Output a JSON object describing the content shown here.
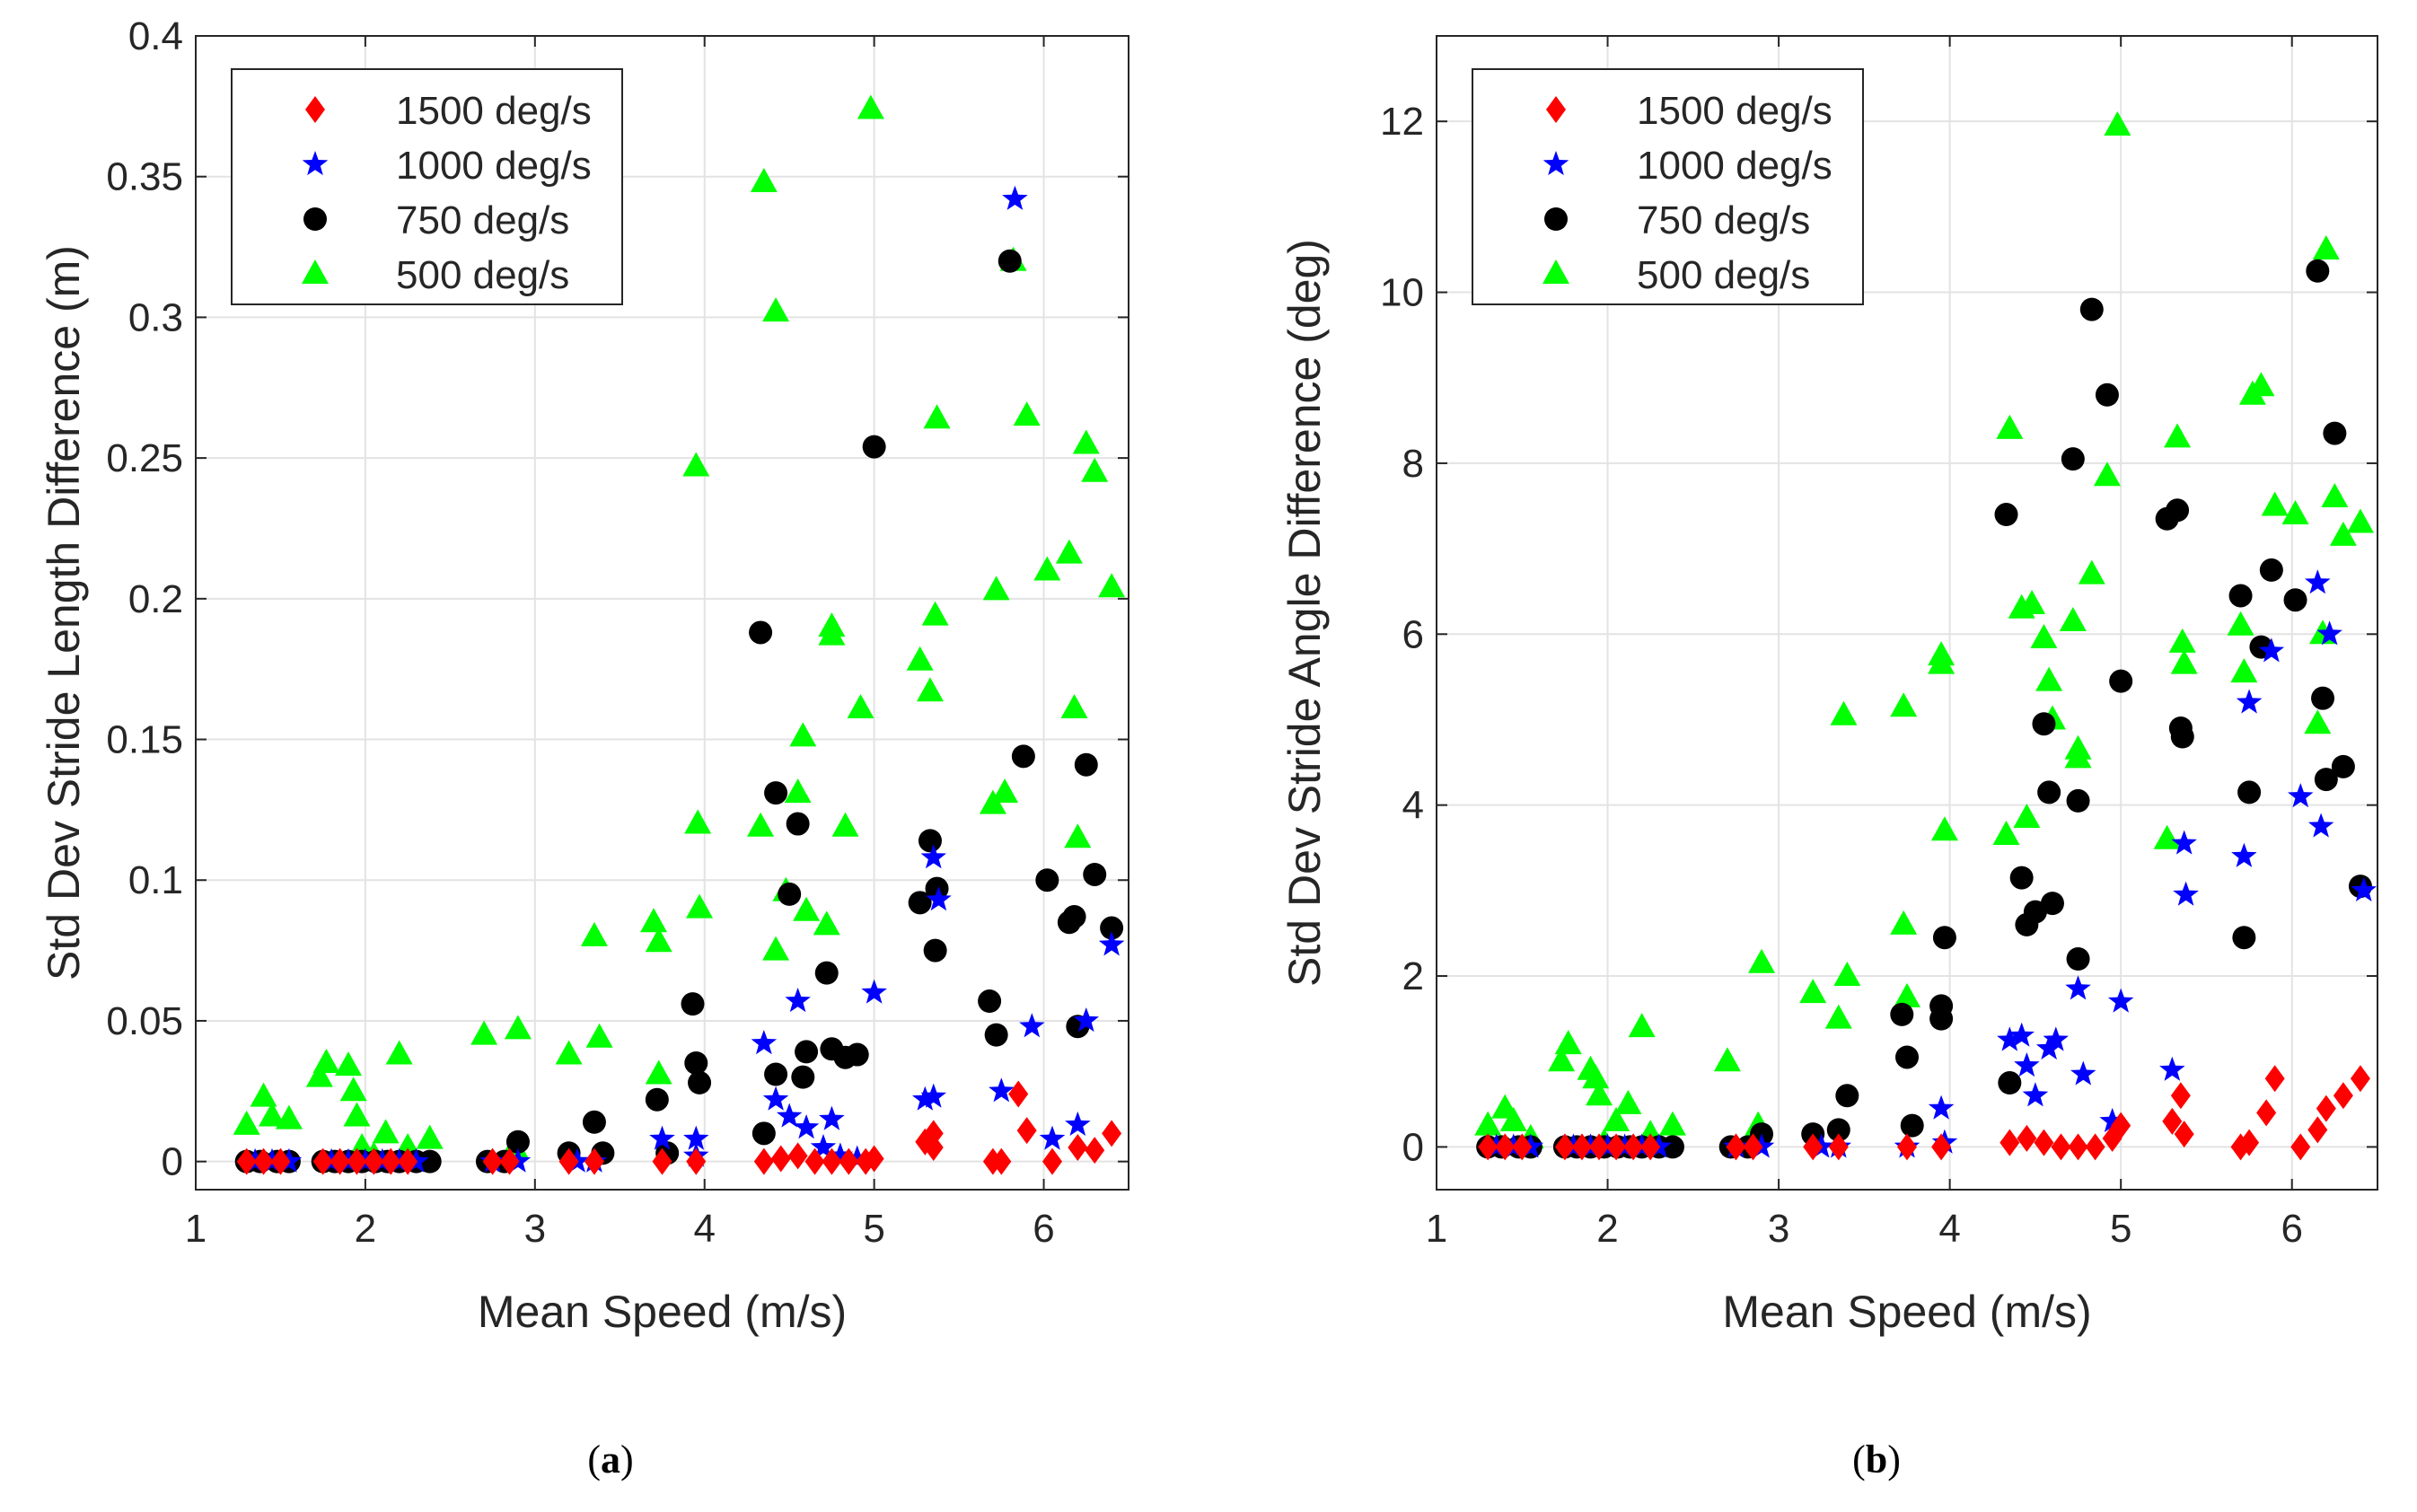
{
  "figure": {
    "panels": [
      {
        "caption_open": "(",
        "caption_letter": "a",
        "caption_close": ")"
      },
      {
        "caption_open": "(",
        "caption_letter": "b",
        "caption_close": ")"
      }
    ]
  },
  "chart_data": [
    {
      "type": "scatter",
      "title": "",
      "xlabel": "Mean Speed (m/s)",
      "ylabel": "Std Dev Stride Length Difference (m)",
      "xlim": [
        1,
        6.5
      ],
      "ylim": [
        -0.01,
        0.4
      ],
      "xticks": [
        1,
        2,
        3,
        4,
        5,
        6
      ],
      "yticks": [
        0,
        0.05,
        0.1,
        0.15,
        0.2,
        0.25,
        0.3,
        0.35,
        0.4
      ],
      "grid": true,
      "legend_position": "top-left",
      "series": [
        {
          "name": "1500 deg/s",
          "marker": "diamond",
          "color": "#ff0000",
          "x": [
            1.3,
            1.4,
            1.5,
            1.75,
            1.85,
            1.95,
            2.05,
            2.15,
            2.25,
            2.75,
            2.85,
            3.2,
            3.35,
            3.75,
            3.95,
            4.35,
            4.45,
            4.55,
            4.65,
            4.75,
            4.85,
            4.95,
            5.0,
            5.3,
            5.35,
            5.35,
            5.7,
            5.75,
            5.85,
            5.9,
            6.05,
            6.2,
            6.3,
            6.4
          ],
          "y": [
            0,
            0,
            0,
            0,
            0,
            0,
            0,
            0,
            0,
            0,
            0,
            0,
            0,
            0,
            0,
            0,
            0.001,
            0.002,
            0,
            0,
            0,
            0,
            0.001,
            0.007,
            0.01,
            0.005,
            0,
            0,
            0.024,
            0.011,
            0,
            0.005,
            0.004,
            0.01
          ]
        },
        {
          "name": "1000 deg/s",
          "marker": "star",
          "color": "#0000ff",
          "x": [
            1.35,
            1.45,
            1.55,
            1.8,
            1.9,
            2.0,
            2.1,
            2.2,
            2.3,
            2.75,
            2.9,
            3.25,
            3.35,
            3.75,
            3.95,
            3.95,
            4.35,
            4.42,
            4.5,
            4.55,
            4.6,
            4.7,
            4.75,
            4.8,
            4.9,
            5.0,
            5.3,
            5.35,
            5.38,
            5.35,
            5.75,
            5.83,
            5.93,
            6.05,
            6.2,
            6.25,
            6.4
          ],
          "y": [
            0,
            0,
            0,
            0,
            0,
            0,
            0,
            0,
            0,
            0,
            0,
            0,
            0,
            0.008,
            0.008,
            0.002,
            0.042,
            0.022,
            0.016,
            0.057,
            0.012,
            0.005,
            0.015,
            0.002,
            0.001,
            0.06,
            0.022,
            0.108,
            0.093,
            0.023,
            0.025,
            0.342,
            0.048,
            0.008,
            0.013,
            0.05,
            0.077
          ]
        },
        {
          "name": "750 deg/s",
          "marker": "circle",
          "color": "#000000",
          "x": [
            1.3,
            1.38,
            1.48,
            1.55,
            1.75,
            1.82,
            1.9,
            1.98,
            2.06,
            2.13,
            2.2,
            2.3,
            2.38,
            2.72,
            2.82,
            2.9,
            3.2,
            3.35,
            3.4,
            3.72,
            3.78,
            3.93,
            3.95,
            3.97,
            4.33,
            4.35,
            4.42,
            4.42,
            4.5,
            4.55,
            4.58,
            4.6,
            4.72,
            4.75,
            4.83,
            4.9,
            5.0,
            5.27,
            5.33,
            5.37,
            5.36,
            5.68,
            5.72,
            5.8,
            5.88,
            6.02,
            6.15,
            6.18,
            6.2,
            6.25,
            6.3,
            6.4
          ],
          "y": [
            0,
            0,
            0,
            0,
            0,
            0,
            0,
            0,
            0,
            0,
            0,
            0,
            0,
            0,
            0,
            0.007,
            0.003,
            0.014,
            0.003,
            0.022,
            0.003,
            0.056,
            0.035,
            0.028,
            0.188,
            0.01,
            0.131,
            0.031,
            0.095,
            0.12,
            0.03,
            0.039,
            0.067,
            0.04,
            0.037,
            0.038,
            0.254,
            0.092,
            0.114,
            0.097,
            0.075,
            0.057,
            0.045,
            0.32,
            0.144,
            0.1,
            0.085,
            0.087,
            0.048,
            0.141,
            0.102,
            0.083
          ]
        },
        {
          "name": "500 deg/s",
          "marker": "triangle",
          "color": "#00ff00",
          "x": [
            1.3,
            1.4,
            1.45,
            1.55,
            1.73,
            1.77,
            1.9,
            1.93,
            1.95,
            1.98,
            2.05,
            2.12,
            2.2,
            2.25,
            2.38,
            2.7,
            2.9,
            2.88,
            3.2,
            3.35,
            3.38,
            3.7,
            3.73,
            3.73,
            3.95,
            3.96,
            3.97,
            4.33,
            4.35,
            4.42,
            4.42,
            4.48,
            4.55,
            4.58,
            4.6,
            4.72,
            4.75,
            4.75,
            4.83,
            4.92,
            4.98,
            5.27,
            5.33,
            5.36,
            5.37,
            5.7,
            5.72,
            5.77,
            5.82,
            5.9,
            6.02,
            6.15,
            6.18,
            6.2,
            6.25,
            6.3,
            6.4
          ],
          "y": [
            0.013,
            0.023,
            0.016,
            0.015,
            0.03,
            0.035,
            0.034,
            0.025,
            0.016,
            0.005,
            0.002,
            0.01,
            0.038,
            0.005,
            0.008,
            0.045,
            0.047,
            0.005,
            0.038,
            0.08,
            0.044,
            0.085,
            0.078,
            0.031,
            0.247,
            0.12,
            0.09,
            0.119,
            0.348,
            0.302,
            0.075,
            0.096,
            0.131,
            0.151,
            0.089,
            0.084,
            0.19,
            0.187,
            0.119,
            0.161,
            0.374,
            0.178,
            0.167,
            0.194,
            0.264,
            0.127,
            0.203,
            0.131,
            0.32,
            0.265,
            0.21,
            0.216,
            0.161,
            0.115,
            0.255,
            0.245,
            0.204
          ]
        }
      ]
    },
    {
      "type": "scatter",
      "title": "",
      "xlabel": "Mean Speed (m/s)",
      "ylabel": "Std Dev Stride Angle Difference (deg)",
      "xlim": [
        1,
        6.5
      ],
      "ylim": [
        -0.5,
        13
      ],
      "xticks": [
        1,
        2,
        3,
        4,
        5,
        6
      ],
      "yticks": [
        0,
        2,
        4,
        6,
        8,
        10,
        12
      ],
      "grid": true,
      "legend_position": "top-left",
      "series": [
        {
          "name": "1500 deg/s",
          "marker": "diamond",
          "color": "#ff0000",
          "x": [
            1.3,
            1.4,
            1.5,
            1.75,
            1.85,
            1.95,
            2.05,
            2.15,
            2.25,
            2.75,
            2.85,
            3.2,
            3.35,
            3.75,
            3.95,
            4.35,
            4.45,
            4.55,
            4.65,
            4.75,
            4.85,
            4.95,
            5.0,
            5.3,
            5.35,
            5.37,
            5.7,
            5.75,
            5.85,
            5.9,
            6.05,
            6.15,
            6.2,
            6.3,
            6.4
          ],
          "y": [
            0,
            0,
            0,
            0,
            0,
            0,
            0,
            0,
            0,
            0,
            0,
            0,
            0,
            0,
            0,
            0.05,
            0.1,
            0.05,
            0,
            0,
            0,
            0.1,
            0.25,
            0.3,
            0.6,
            0.15,
            0,
            0.05,
            0.4,
            0.8,
            0,
            0.2,
            0.45,
            0.6,
            0.8
          ]
        },
        {
          "name": "1000 deg/s",
          "marker": "star",
          "color": "#0000ff",
          "x": [
            1.35,
            1.45,
            1.55,
            1.8,
            1.9,
            2.0,
            2.1,
            2.2,
            2.3,
            2.75,
            2.9,
            3.25,
            3.35,
            3.75,
            3.95,
            3.97,
            4.35,
            4.42,
            4.45,
            4.5,
            4.58,
            4.62,
            4.75,
            4.78,
            4.95,
            5.0,
            5.3,
            5.37,
            5.38,
            5.72,
            5.75,
            5.88,
            6.05,
            6.15,
            6.17,
            6.22,
            6.42
          ],
          "y": [
            0,
            0,
            0,
            0,
            0,
            0,
            0,
            0,
            0,
            0,
            0,
            0,
            0,
            0,
            0.45,
            0.05,
            1.25,
            1.3,
            0.95,
            0.6,
            1.15,
            1.25,
            1.85,
            0.85,
            0.3,
            1.7,
            0.9,
            3.55,
            2.95,
            3.4,
            5.2,
            5.8,
            4.1,
            6.6,
            3.75,
            6.0,
            3.0
          ]
        },
        {
          "name": "750 deg/s",
          "marker": "circle",
          "color": "#000000",
          "x": [
            1.3,
            1.38,
            1.48,
            1.55,
            1.75,
            1.82,
            1.9,
            1.98,
            2.06,
            2.13,
            2.2,
            2.3,
            2.38,
            2.72,
            2.82,
            2.9,
            3.2,
            3.35,
            3.4,
            3.72,
            3.75,
            3.78,
            3.95,
            3.95,
            3.97,
            4.33,
            4.35,
            4.42,
            4.45,
            4.5,
            4.55,
            4.58,
            4.6,
            4.72,
            4.75,
            4.75,
            4.83,
            4.92,
            5.0,
            5.27,
            5.33,
            5.35,
            5.36,
            5.7,
            5.72,
            5.75,
            5.82,
            5.88,
            6.02,
            6.15,
            6.18,
            6.2,
            6.25,
            6.3,
            6.4
          ],
          "y": [
            0,
            0,
            0,
            0,
            0,
            0,
            0,
            0,
            0,
            0,
            0,
            0,
            0,
            0,
            0,
            0.15,
            0.15,
            0.2,
            0.6,
            1.55,
            1.05,
            0.25,
            1.5,
            1.65,
            2.45,
            7.4,
            0.75,
            3.15,
            2.6,
            2.75,
            4.95,
            4.15,
            2.85,
            8.05,
            4.05,
            2.2,
            9.8,
            8.8,
            5.45,
            7.35,
            7.45,
            4.9,
            4.8,
            6.45,
            2.45,
            4.15,
            5.85,
            6.75,
            6.4,
            10.25,
            5.25,
            4.3,
            8.35,
            4.45,
            3.05
          ]
        },
        {
          "name": "500 deg/s",
          "marker": "triangle",
          "color": "#00ff00",
          "x": [
            1.3,
            1.4,
            1.45,
            1.55,
            1.73,
            1.77,
            1.9,
            1.93,
            1.95,
            1.98,
            2.05,
            2.12,
            2.2,
            2.25,
            2.38,
            2.7,
            2.9,
            2.88,
            3.2,
            3.35,
            3.38,
            3.4,
            3.73,
            3.75,
            3.73,
            3.95,
            3.95,
            3.97,
            4.33,
            4.35,
            4.42,
            4.45,
            4.48,
            4.55,
            4.58,
            4.6,
            4.72,
            4.75,
            4.75,
            4.83,
            4.92,
            4.98,
            5.27,
            5.33,
            5.36,
            5.37,
            5.7,
            5.72,
            5.77,
            5.82,
            5.9,
            6.02,
            6.15,
            6.18,
            6.2,
            6.25,
            6.3,
            6.4
          ],
          "y": [
            0.25,
            0.45,
            0.3,
            0.1,
            1.0,
            1.2,
            0.9,
            0.8,
            0.6,
            0.05,
            0.3,
            0.5,
            1.4,
            0.15,
            0.25,
            1.0,
            2.15,
            0.25,
            1.8,
            1.5,
            5.05,
            2.0,
            2.6,
            1.75,
            5.15,
            5.65,
            5.75,
            3.7,
            3.65,
            8.4,
            6.3,
            3.85,
            6.35,
            5.95,
            5.45,
            5.0,
            6.15,
            4.65,
            4.55,
            6.7,
            7.85,
            11.95,
            3.6,
            8.3,
            5.9,
            5.65,
            6.1,
            5.55,
            8.8,
            8.9,
            7.5,
            7.4,
            4.95,
            6.0,
            10.5,
            7.6,
            7.15,
            7.3
          ]
        }
      ]
    }
  ]
}
